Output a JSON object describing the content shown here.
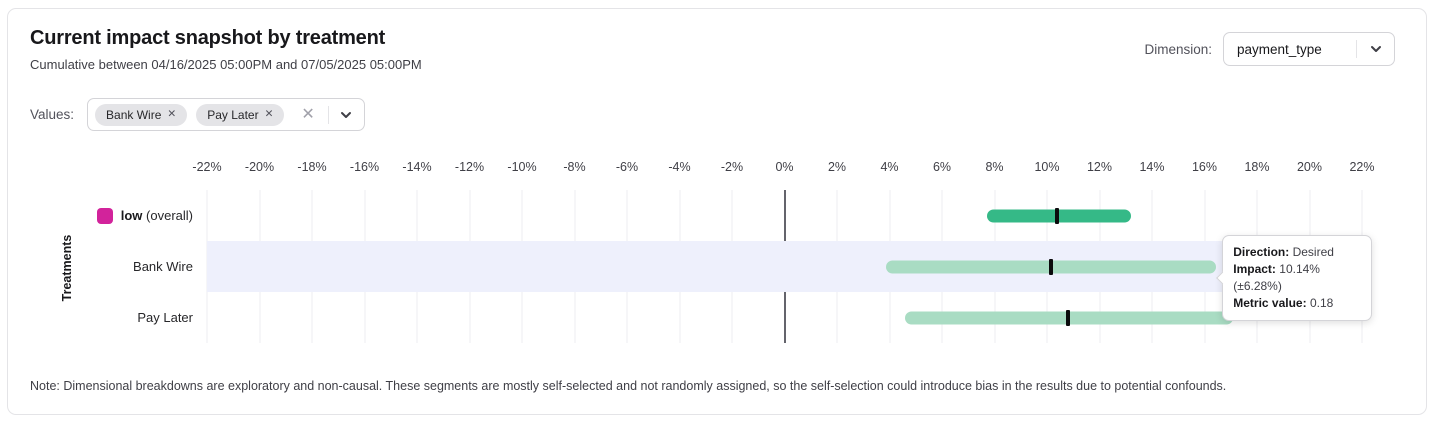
{
  "header": {
    "title": "Current impact snapshot by treatment",
    "subtitle": "Cumulative between 04/16/2025 05:00PM and 07/05/2025 05:00PM",
    "dimension_label": "Dimension:",
    "dimension_value": "payment_type"
  },
  "filters": {
    "values_label": "Values:",
    "chips": [
      "Bank Wire",
      "Pay Later"
    ],
    "chip_remove_glyph": "✕",
    "clear_glyph": "✕"
  },
  "chart_data": {
    "type": "interval_bar",
    "ylabel": "Treatments",
    "unit": "%",
    "axis": {
      "min": -22,
      "max": 22
    },
    "grid": true,
    "ticks": [
      "-22%",
      "-20%",
      "-18%",
      "-16%",
      "-14%",
      "-12%",
      "-10%",
      "-8%",
      "-6%",
      "-4%",
      "-2%",
      "0%",
      "2%",
      "4%",
      "6%",
      "8%",
      "10%",
      "12%",
      "14%",
      "16%",
      "18%",
      "20%",
      "22%"
    ],
    "rows": [
      {
        "label_bold": "low",
        "label": " (overall)",
        "swatch_color": "#d2239b",
        "bar_color": "#35b987",
        "estimate": 10.4,
        "ci_low": 7.7,
        "ci_high": 13.2,
        "highlighted": false
      },
      {
        "label": "Bank Wire",
        "bar_color": "#a9dcc3",
        "estimate": 10.14,
        "ci_low": 3.86,
        "ci_high": 16.42,
        "highlighted": true
      },
      {
        "label": "Pay Later",
        "bar_color": "#a9dcc3",
        "estimate": 10.8,
        "ci_low": 4.6,
        "ci_high": 17.1,
        "highlighted": false
      }
    ]
  },
  "tooltip": {
    "direction_label": "Direction:",
    "direction_value": "Desired",
    "impact_label": "Impact:",
    "impact_value": "10.14% (±6.28%)",
    "metric_label": "Metric value:",
    "metric_value": "0.18"
  },
  "note": "Note: Dimensional breakdowns are exploratory and non-causal. These segments are mostly self-selected and not randomly assigned, so the self-selection could introduce bias in the results due to potential confounds."
}
